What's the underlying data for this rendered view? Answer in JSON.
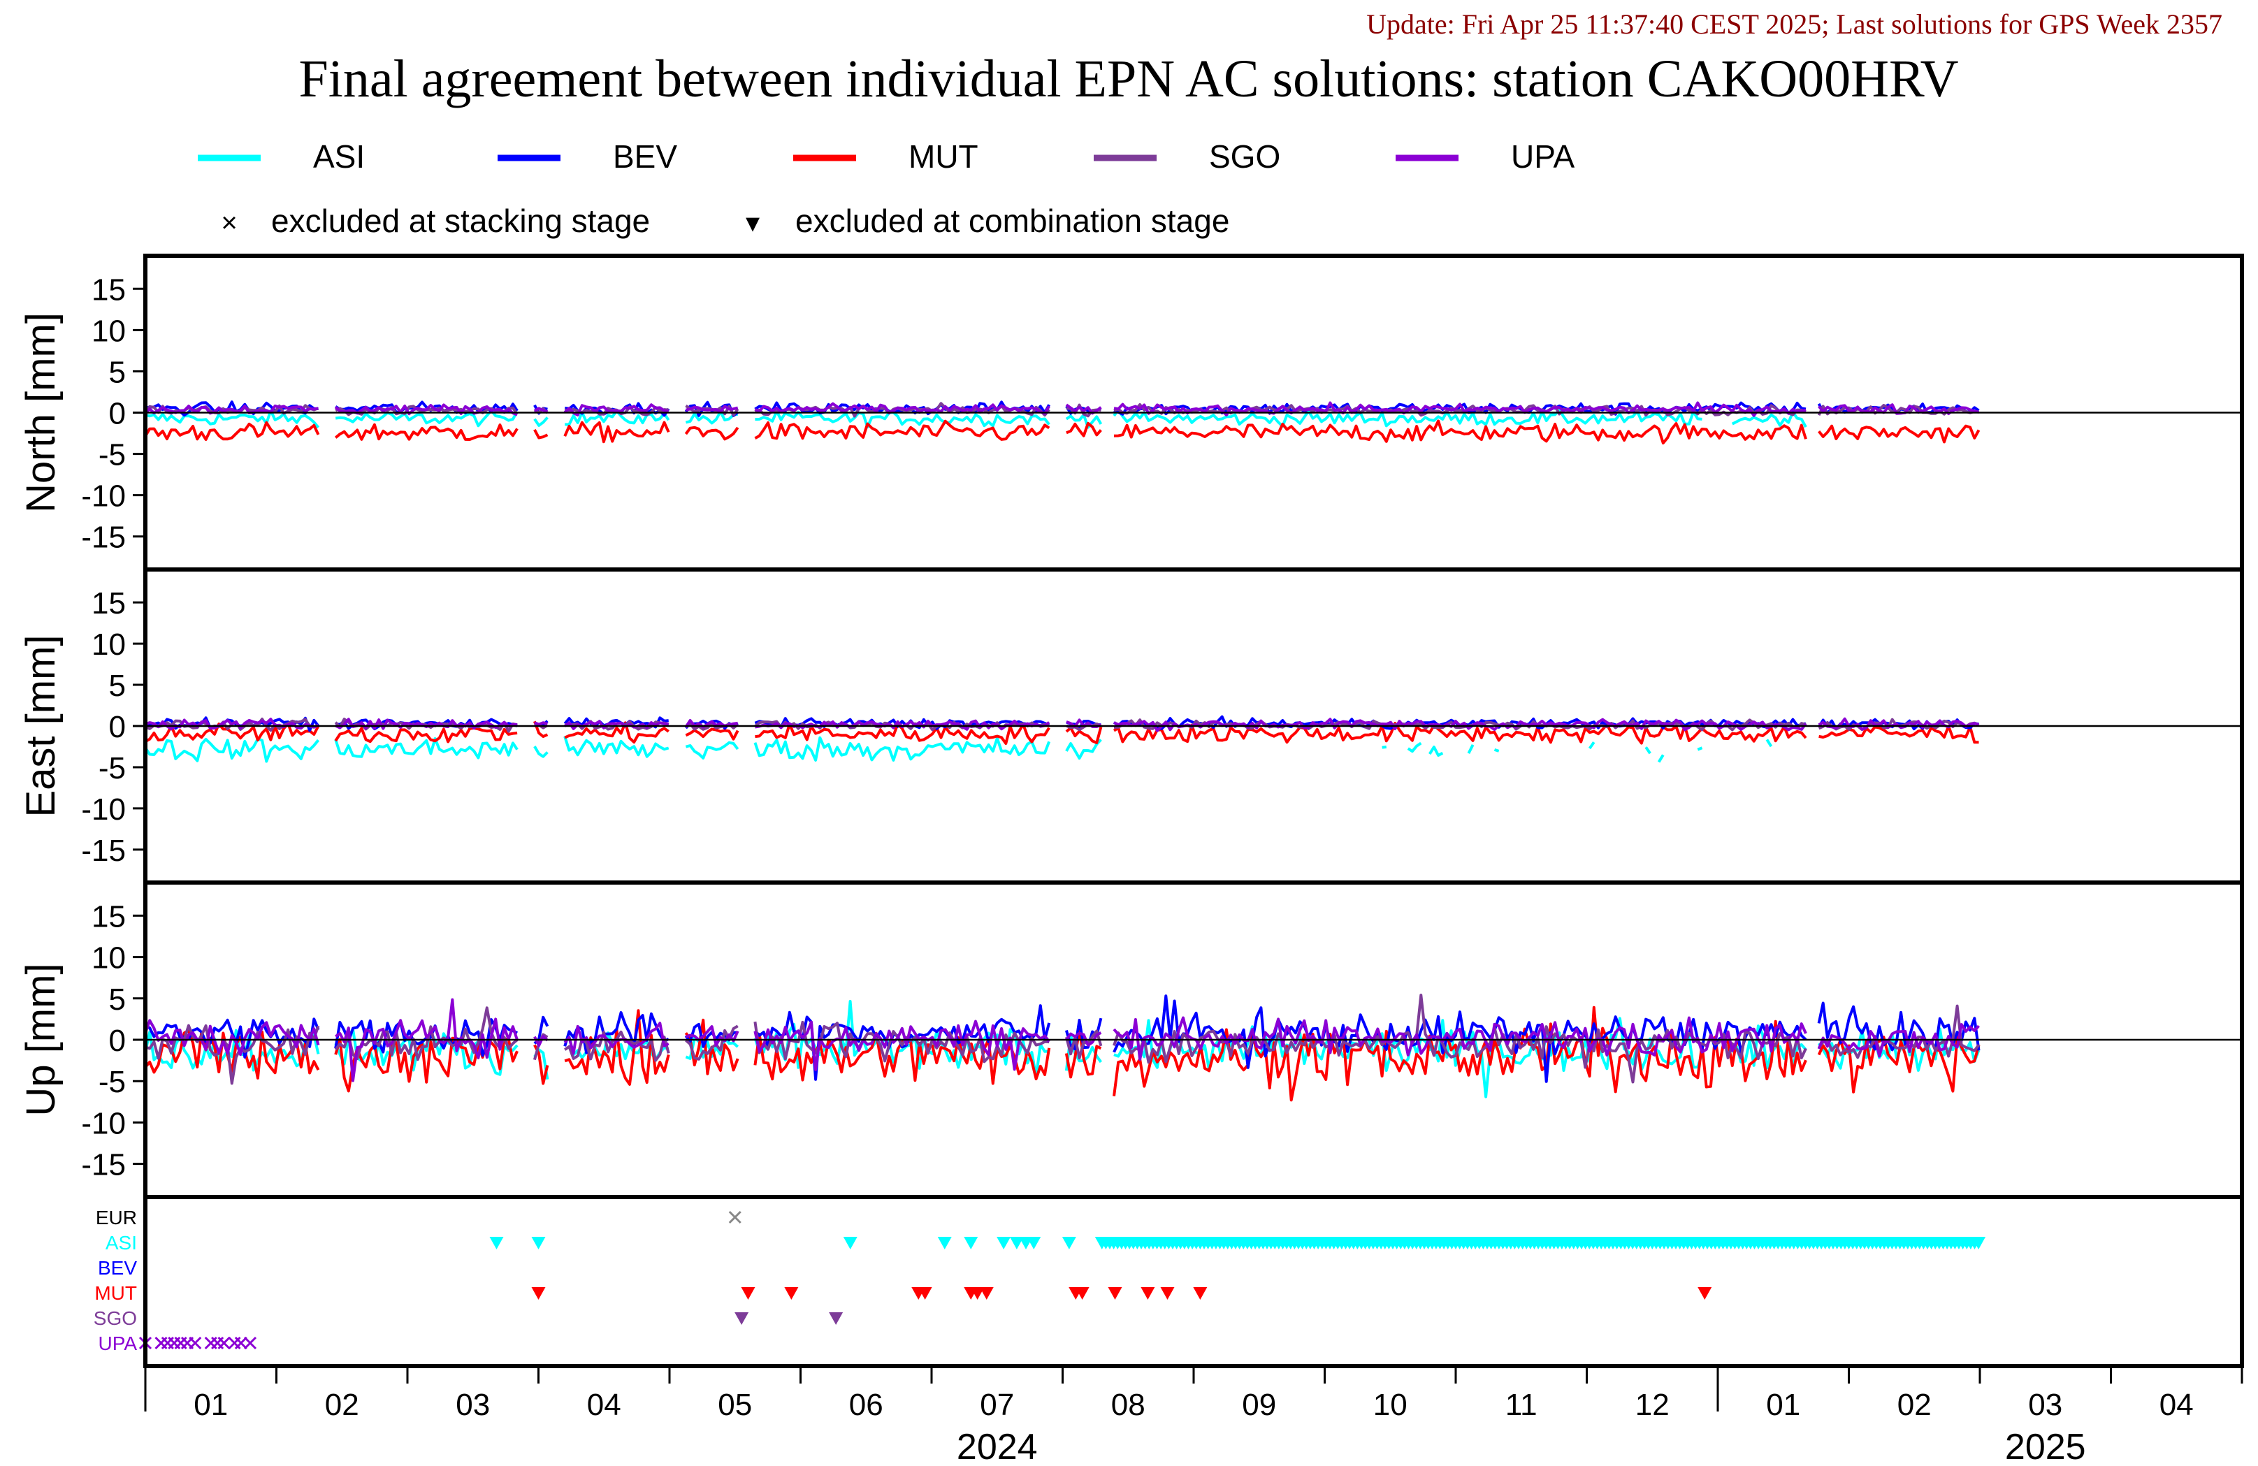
{
  "update_text": "Update: Fri Apr 25 11:37:40 CEST 2025; Last solutions for GPS Week 2357",
  "title": "Final agreement between individual EPN AC solutions: station CAKO00HRV",
  "colors": {
    "ASI": "#00ffff",
    "BEV": "#0000ff",
    "MUT": "#ff0000",
    "SGO": "#7d3c98",
    "UPA": "#8b00d4",
    "EUR": "#888888",
    "update_text": "#8b0000"
  },
  "legend": {
    "series": [
      "ASI",
      "BEV",
      "MUT",
      "SGO",
      "UPA"
    ],
    "excluded_stacking": "excluded at stacking stage",
    "excluded_combination": "excluded at combination stage",
    "stacking_symbol": "×",
    "combination_symbol": "▾"
  },
  "chart_data": {
    "type": "line",
    "x_axis": {
      "month_labels": [
        "01",
        "02",
        "03",
        "04",
        "05",
        "06",
        "07",
        "08",
        "09",
        "10",
        "11",
        "12",
        "01",
        "02",
        "03",
        "04"
      ],
      "year_labels": [
        {
          "label": "2024",
          "month": 6.5
        },
        {
          "label": "2025",
          "month": 14.5
        }
      ],
      "range": [
        "2024-01-01",
        "2025-04-30"
      ]
    },
    "panels": [
      {
        "name": "north",
        "ylabel": "North [mm]",
        "ylim": [
          -19,
          19
        ],
        "yticks": [
          15,
          10,
          5,
          0,
          -5,
          -10,
          -15
        ],
        "offsets": {
          "ASI": -0.7,
          "BEV": 0.5,
          "MUT": -2.4,
          "SGO": 0.3,
          "UPA": 0.4
        },
        "noise": {
          "ASI": 0.6,
          "BEV": 0.5,
          "MUT": 0.8,
          "SGO": 0.4,
          "UPA": 0.4
        }
      },
      {
        "name": "east",
        "ylabel": "East [mm]",
        "ylim": [
          -19,
          19
        ],
        "yticks": [
          15,
          10,
          5,
          0,
          -5,
          -10,
          -15
        ],
        "offsets": {
          "ASI": -2.8,
          "BEV": 0.3,
          "MUT": -0.9,
          "SGO": 0.1,
          "UPA": 0.2
        },
        "noise": {
          "ASI": 1.0,
          "BEV": 0.4,
          "MUT": 0.8,
          "SGO": 0.4,
          "UPA": 0.4
        }
      },
      {
        "name": "up",
        "ylabel": "Up [mm]",
        "ylim": [
          -19,
          19
        ],
        "yticks": [
          15,
          10,
          5,
          0,
          -5,
          -10,
          -15
        ],
        "offsets": {
          "ASI": -1.2,
          "BEV": 0.8,
          "MUT": -2.0,
          "SGO": -0.5,
          "UPA": 0.3
        },
        "noise": {
          "ASI": 1.8,
          "BEV": 1.6,
          "MUT": 2.3,
          "SGO": 1.4,
          "UPA": 1.4
        }
      }
    ],
    "data_range_months": [
      0.0,
      14.0
    ],
    "gaps_months": [
      [
        1.35,
        1.45
      ],
      [
        2.85,
        2.95
      ],
      [
        3.08,
        3.2
      ],
      [
        4.0,
        4.12
      ],
      [
        4.55,
        4.62
      ],
      [
        6.9,
        7.0
      ],
      [
        7.3,
        7.38
      ],
      [
        12.7,
        12.76
      ]
    ],
    "exclusions": {
      "rows": [
        "EUR",
        "ASI",
        "BEV",
        "MUT",
        "SGO",
        "UPA"
      ],
      "EUR": {
        "stacking": [
          4.5
        ],
        "combination": []
      },
      "ASI": {
        "stacking": [],
        "combination": [
          2.68,
          3.0,
          5.38,
          6.1,
          6.3,
          6.55,
          6.65,
          6.72,
          6.78,
          7.05,
          7.3,
          7.33,
          7.36,
          7.39,
          7.42,
          7.45,
          7.48,
          7.51,
          7.54,
          7.57,
          7.6,
          7.63,
          7.66,
          7.69,
          7.72,
          7.75,
          7.78,
          7.81,
          7.84,
          7.87,
          7.9,
          7.93,
          7.96,
          7.99,
          8.02,
          8.05,
          8.08,
          8.11,
          8.14,
          8.17,
          8.2,
          8.23,
          8.26,
          8.29,
          8.32,
          8.35,
          8.38,
          8.41,
          8.44,
          8.47,
          8.5,
          8.53,
          8.56,
          8.59,
          8.62,
          8.65,
          8.68,
          8.71,
          8.74,
          8.77,
          8.8,
          8.83,
          8.86,
          8.89,
          8.92,
          8.95,
          8.98,
          9.01,
          9.04,
          9.07,
          9.1,
          9.13,
          9.16,
          9.19,
          9.22,
          9.25,
          9.28,
          9.31,
          9.34,
          9.37,
          9.4,
          9.43,
          9.46,
          9.49,
          9.52,
          9.55,
          9.58,
          9.61,
          9.64,
          9.67,
          9.7,
          9.73,
          9.76,
          9.79,
          9.82,
          9.85,
          9.88,
          9.91,
          9.94,
          9.97,
          10.0,
          10.03,
          10.06,
          10.09,
          10.12,
          10.15,
          10.18,
          10.21,
          10.24,
          10.27,
          10.3,
          10.33,
          10.36,
          10.39,
          10.42,
          10.45,
          10.48,
          10.51,
          10.54,
          10.57,
          10.6,
          10.63,
          10.66,
          10.69,
          10.72,
          10.75,
          10.78,
          10.81,
          10.84,
          10.87,
          10.9,
          10.93,
          10.96,
          10.99,
          11.02,
          11.05,
          11.08,
          11.11,
          11.14,
          11.17,
          11.2,
          11.23,
          11.26,
          11.29,
          11.32,
          11.35,
          11.38,
          11.41,
          11.44,
          11.47,
          11.5,
          11.53,
          11.56,
          11.59,
          11.62,
          11.65,
          11.68,
          11.71,
          11.74,
          11.77,
          11.8,
          11.83,
          11.86,
          11.89,
          11.92,
          11.95,
          11.98,
          12.01,
          12.04,
          12.07,
          12.1,
          12.13,
          12.16,
          12.19,
          12.22,
          12.25,
          12.28,
          12.31,
          12.34,
          12.37,
          12.4,
          12.43,
          12.46,
          12.49,
          12.52,
          12.55,
          12.58,
          12.61,
          12.64,
          12.67,
          12.7,
          12.73,
          12.76,
          12.79,
          12.82,
          12.85,
          12.88,
          12.91,
          12.94,
          12.97,
          13.0,
          13.03,
          13.06,
          13.09,
          13.12,
          13.15,
          13.18,
          13.21,
          13.24,
          13.27,
          13.3,
          13.33,
          13.36,
          13.39,
          13.42,
          13.45,
          13.48,
          13.51,
          13.54,
          13.57,
          13.6,
          13.63,
          13.66,
          13.69,
          13.72,
          13.75,
          13.78,
          13.81,
          13.84,
          13.87,
          13.9,
          13.93,
          13.96,
          13.99
        ]
      },
      "BEV": {
        "stacking": [],
        "combination": []
      },
      "MUT": {
        "stacking": [],
        "combination": [
          3.0,
          4.6,
          4.93,
          5.9,
          5.95,
          6.3,
          6.35,
          6.42,
          7.1,
          7.15,
          7.4,
          7.65,
          7.8,
          8.05,
          11.9
        ]
      },
      "SGO": {
        "stacking": [],
        "combination": [
          4.55,
          5.27
        ]
      },
      "UPA": {
        "stacking": [
          0.0,
          0.12,
          0.17,
          0.22,
          0.27,
          0.32,
          0.38,
          0.5,
          0.55,
          0.6,
          0.68,
          0.73,
          0.8
        ],
        "combination": []
      }
    }
  }
}
